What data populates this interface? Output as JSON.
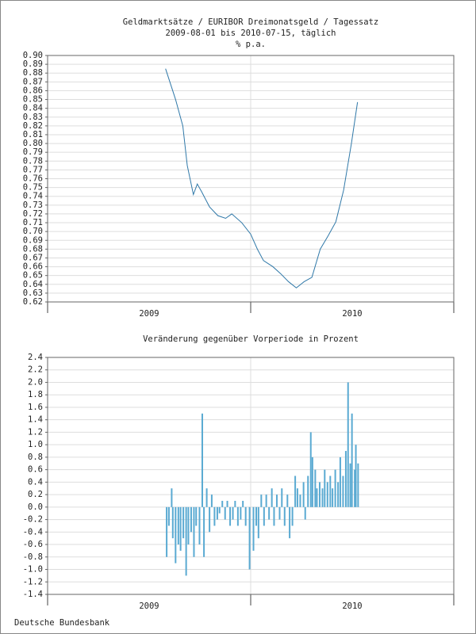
{
  "chart_data": [
    {
      "type": "line",
      "title": "Geldmarktsätze / EURIBOR Dreimonatsgeld / Tagessatz",
      "subtitle": "2009-08-01 bis 2010-07-15, täglich",
      "y_label": "% p.a.",
      "color": "#2f78a8",
      "x": [
        "2009-08-01",
        "2009-08-19",
        "2009-09-01",
        "2009-09-09",
        "2009-09-20",
        "2009-09-27",
        "2009-10-05",
        "2009-10-19",
        "2009-11-03",
        "2009-11-17",
        "2009-11-28",
        "2009-12-16",
        "2010-01-01",
        "2010-01-13",
        "2010-01-24",
        "2010-02-10",
        "2010-02-24",
        "2010-03-10",
        "2010-03-24",
        "2010-04-07",
        "2010-04-21",
        "2010-05-06",
        "2010-05-20",
        "2010-06-03",
        "2010-06-17",
        "2010-07-01",
        "2010-07-12"
      ],
      "values": [
        0.885,
        0.85,
        0.82,
        0.775,
        0.742,
        0.754,
        0.745,
        0.728,
        0.718,
        0.715,
        0.72,
        0.71,
        0.697,
        0.68,
        0.667,
        0.66,
        0.652,
        0.643,
        0.636,
        0.643,
        0.648,
        0.68,
        0.695,
        0.711,
        0.747,
        0.8,
        0.847
      ],
      "xlim": [
        "2009-01-01",
        "2011-01-01"
      ],
      "xticks": [
        "2009-01-01",
        "2010-01-01",
        "2011-01-01"
      ],
      "xtick_labels": [
        "2009",
        "2010"
      ],
      "ylim": [
        0.62,
        0.9
      ],
      "yticks": [
        0.62,
        0.63,
        0.64,
        0.65,
        0.66,
        0.67,
        0.68,
        0.69,
        {
          "value": 0.7,
          "label": "0.70"
        },
        0.71,
        0.72,
        0.73,
        0.74,
        0.75,
        0.76,
        0.77,
        0.78,
        0.79,
        {
          "value": 0.8,
          "label": "0.80"
        },
        0.81,
        0.82,
        0.83,
        0.84,
        0.85,
        0.86,
        0.87,
        0.88,
        0.89,
        {
          "value": 0.9,
          "label": "0.90"
        }
      ],
      "grid": true
    },
    {
      "type": "bar",
      "title": "Veränderung gegenüber Vorperiode in Prozent",
      "color": "#5aaad2",
      "x": [
        "2009-08-03",
        "2009-08-07",
        "2009-08-12",
        "2009-08-14",
        "2009-08-19",
        "2009-08-24",
        "2009-08-28",
        "2009-09-02",
        "2009-09-07",
        "2009-09-11",
        "2009-09-16",
        "2009-09-21",
        "2009-09-25",
        "2009-10-01",
        "2009-10-06",
        "2009-10-09",
        "2009-10-14",
        "2009-10-19",
        "2009-10-23",
        "2009-10-28",
        "2009-11-02",
        "2009-11-06",
        "2009-11-11",
        "2009-11-16",
        "2009-11-20",
        "2009-11-25",
        "2009-11-30",
        "2009-12-04",
        "2009-12-09",
        "2009-12-14",
        "2009-12-18",
        "2009-12-23",
        "2009-12-30",
        "2010-01-06",
        "2010-01-11",
        "2010-01-15",
        "2010-01-20",
        "2010-01-25",
        "2010-01-29",
        "2010-02-03",
        "2010-02-08",
        "2010-02-12",
        "2010-02-17",
        "2010-02-22",
        "2010-02-26",
        "2010-03-03",
        "2010-03-08",
        "2010-03-12",
        "2010-03-17",
        "2010-03-22",
        "2010-03-26",
        "2010-03-31",
        "2010-04-06",
        "2010-04-09",
        "2010-04-14",
        "2010-04-19",
        "2010-04-22",
        "2010-04-27",
        "2010-04-30",
        "2010-05-05",
        "2010-05-10",
        "2010-05-14",
        "2010-05-19",
        "2010-05-24",
        "2010-05-28",
        "2010-06-02",
        "2010-06-07",
        "2010-06-11",
        "2010-06-16",
        "2010-06-21",
        "2010-06-25",
        "2010-06-29",
        "2010-07-02",
        "2010-07-07",
        "2010-07-09",
        "2010-07-13"
      ],
      "values": [
        -0.8,
        -0.3,
        0.3,
        -0.5,
        -0.9,
        -0.6,
        -0.7,
        -0.5,
        -1.1,
        -0.6,
        -0.4,
        -0.8,
        -0.3,
        -0.6,
        1.5,
        -0.8,
        0.3,
        -0.4,
        0.2,
        -0.3,
        -0.2,
        -0.1,
        0.1,
        -0.2,
        0.1,
        -0.3,
        -0.2,
        0.1,
        -0.3,
        -0.2,
        0.1,
        -0.3,
        -1.0,
        -0.7,
        -0.3,
        -0.5,
        0.2,
        -0.3,
        0.2,
        -0.2,
        0.3,
        -0.3,
        0.2,
        -0.2,
        0.3,
        -0.3,
        0.2,
        -0.5,
        -0.3,
        0.5,
        0.3,
        0.2,
        0.4,
        -0.2,
        0.5,
        1.2,
        0.8,
        0.6,
        0.3,
        0.4,
        0.3,
        0.6,
        0.4,
        0.5,
        0.3,
        0.6,
        0.4,
        0.8,
        0.5,
        0.9,
        2.0,
        0.7,
        1.5,
        0.6,
        1.0,
        0.7
      ],
      "xlim": [
        "2009-01-01",
        "2011-01-01"
      ],
      "xticks": [
        "2009-01-01",
        "2010-01-01",
        "2011-01-01"
      ],
      "xtick_labels": [
        "2009",
        "2010"
      ],
      "ylim": [
        -1.4,
        2.4
      ],
      "yticks": [
        -1.4,
        -1.2,
        {
          "value": -1,
          "label": "-1.0"
        },
        -0.8,
        -0.6,
        -0.4,
        -0.2,
        {
          "value": 0,
          "label": "0.0"
        },
        0.2,
        0.4,
        0.6,
        0.8,
        {
          "value": 1,
          "label": "1.0"
        },
        1.2,
        1.4,
        1.6,
        1.8,
        {
          "value": 2,
          "label": "2.0"
        },
        2.2,
        2.4
      ],
      "grid": true
    }
  ],
  "footer": "Deutsche Bundesbank"
}
